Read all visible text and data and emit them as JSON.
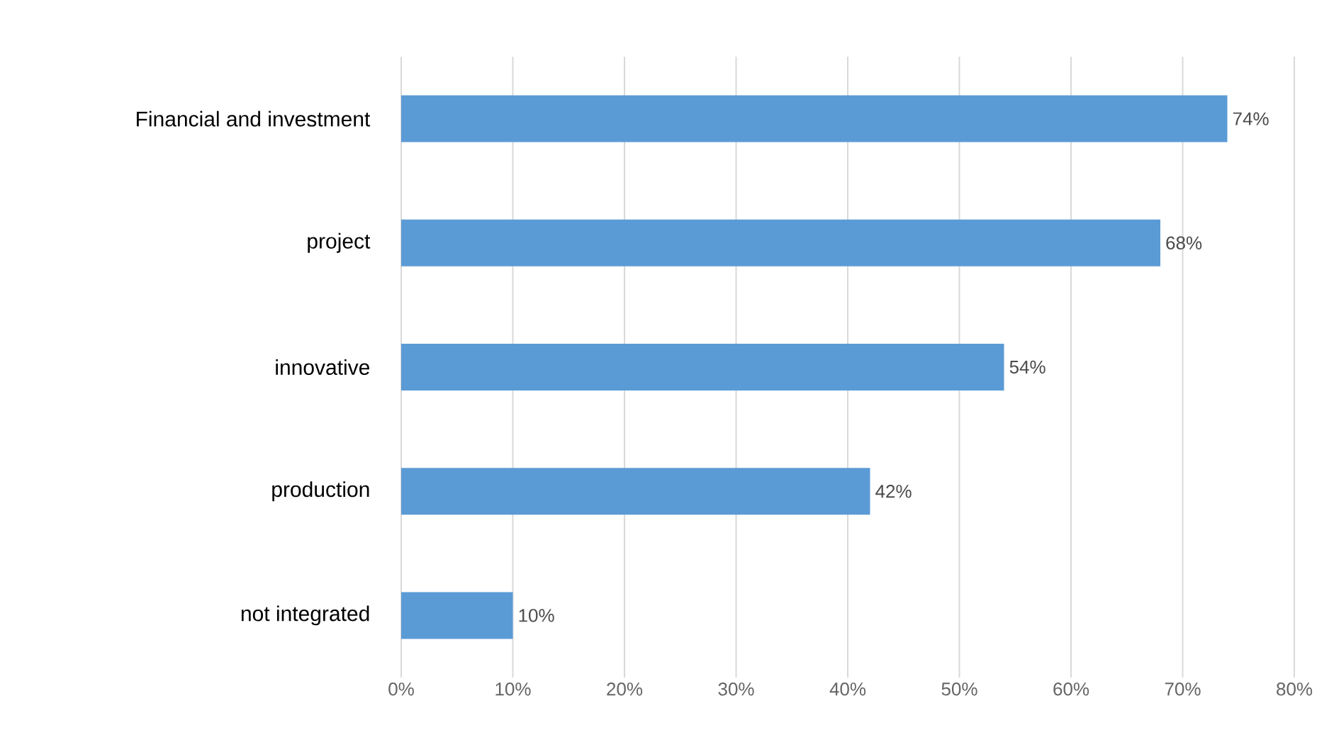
{
  "chart_data": {
    "type": "bar",
    "orientation": "horizontal",
    "categories": [
      "Financial and investment",
      "project",
      "innovative",
      "production",
      "not integrated"
    ],
    "values": [
      74,
      68,
      54,
      42,
      10
    ],
    "value_labels": [
      "74%",
      "68%",
      "54%",
      "42%",
      "10%"
    ],
    "color": "#5b9bd5",
    "xlim": [
      0,
      80
    ],
    "xticks": [
      {
        "value": 0,
        "label": "0%"
      },
      {
        "value": 10,
        "label": "10%"
      },
      {
        "value": 20,
        "label": "20%"
      },
      {
        "value": 30,
        "label": "30%"
      },
      {
        "value": 40,
        "label": "40%"
      },
      {
        "value": 50,
        "label": "50%"
      },
      {
        "value": 60,
        "label": "60%"
      },
      {
        "value": 70,
        "label": "70%"
      },
      {
        "value": 80,
        "label": "80%"
      }
    ],
    "grid": "x"
  }
}
